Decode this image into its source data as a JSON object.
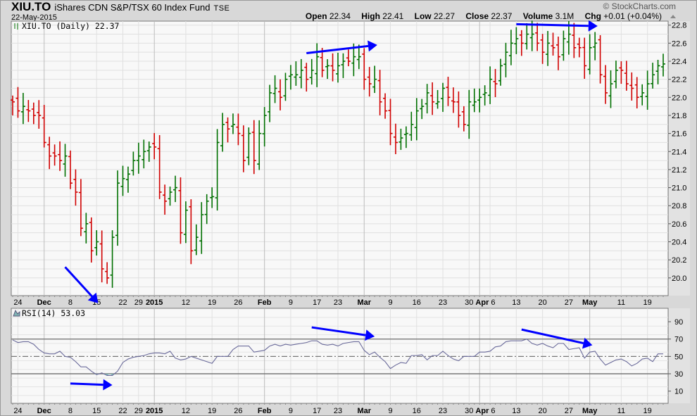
{
  "header": {
    "symbol": "XIU.TO",
    "name": "iShares CDN S&P/TSX 60 Index Fund",
    "exchange": "TSE",
    "date": "22-May-2015",
    "copyright": "© StockCharts.com",
    "open_label": "Open",
    "open": "22.34",
    "high_label": "High",
    "high": "22.41",
    "low_label": "Low",
    "low": "22.27",
    "close_label": "Close",
    "close": "22.37",
    "volume_label": "Volume",
    "volume": "3.1M",
    "chg_label": "Chg",
    "chg": "+0.01 (+0.04%)"
  },
  "colors": {
    "up": "#007000",
    "down": "#d00000",
    "rsi": "#6a6a9a",
    "arrow": "#0000ff",
    "oversold_fill": "#7fb3b3"
  },
  "chart_data": [
    {
      "type": "ohlc",
      "title": "XIU.TO (Daily) 22.37",
      "ylim": [
        19.8,
        22.84
      ],
      "yticks": [
        "20.0",
        "20.2",
        "20.4",
        "20.6",
        "20.8",
        "21.0",
        "21.2",
        "21.4",
        "21.6",
        "21.8",
        "22.0",
        "22.2",
        "22.4",
        "22.6",
        "22.8"
      ],
      "xticks": [
        {
          "i": 1,
          "label": "24",
          "bold": false
        },
        {
          "i": 6,
          "label": "Dec",
          "bold": true
        },
        {
          "i": 11,
          "label": "8",
          "bold": false
        },
        {
          "i": 16,
          "label": "15",
          "bold": false
        },
        {
          "i": 21,
          "label": "22",
          "bold": false
        },
        {
          "i": 24,
          "label": "29",
          "bold": false
        },
        {
          "i": 27,
          "label": "2015",
          "bold": true
        },
        {
          "i": 33,
          "label": "12",
          "bold": false
        },
        {
          "i": 38,
          "label": "19",
          "bold": false
        },
        {
          "i": 43,
          "label": "26",
          "bold": false
        },
        {
          "i": 48,
          "label": "Feb",
          "bold": true
        },
        {
          "i": 53,
          "label": "9",
          "bold": false
        },
        {
          "i": 58,
          "label": "17",
          "bold": false
        },
        {
          "i": 62,
          "label": "23",
          "bold": false
        },
        {
          "i": 67,
          "label": "Mar",
          "bold": true
        },
        {
          "i": 72,
          "label": "9",
          "bold": false
        },
        {
          "i": 77,
          "label": "16",
          "bold": false
        },
        {
          "i": 82,
          "label": "23",
          "bold": false
        },
        {
          "i": 87,
          "label": "30",
          "bold": false
        },
        {
          "i": 89,
          "label": "Apr",
          "bold": true
        },
        {
          "i": 91,
          "label": "6",
          "bold": false
        },
        {
          "i": 96,
          "label": "13",
          "bold": false
        },
        {
          "i": 101,
          "label": "20",
          "bold": false
        },
        {
          "i": 106,
          "label": "27",
          "bold": false
        },
        {
          "i": 110,
          "label": "May",
          "bold": true
        },
        {
          "i": 116,
          "label": "11",
          "bold": false
        },
        {
          "i": 121,
          "label": "19",
          "bold": false
        }
      ],
      "close": [
        21.95,
        21.85,
        21.9,
        21.85,
        21.8,
        21.8,
        21.5,
        21.35,
        21.35,
        21.3,
        21.35,
        21.05,
        20.95,
        20.55,
        20.6,
        20.3,
        20.4,
        20.1,
        20.0,
        20.45,
        21.05,
        21.1,
        21.15,
        21.3,
        21.35,
        21.4,
        21.45,
        21.45,
        20.95,
        20.85,
        20.95,
        21.0,
        20.5,
        20.75,
        20.3,
        20.45,
        20.7,
        20.85,
        20.9,
        21.5,
        21.7,
        21.65,
        21.7,
        21.6,
        21.3,
        21.6,
        21.3,
        21.6,
        21.8,
        22.05,
        22.1,
        22.0,
        22.2,
        22.25,
        22.25,
        22.3,
        22.2,
        22.3,
        22.45,
        22.3,
        22.35,
        22.3,
        22.35,
        22.4,
        22.4,
        22.45,
        22.45,
        22.2,
        22.15,
        22.2,
        21.95,
        21.85,
        21.6,
        21.5,
        21.55,
        21.6,
        21.7,
        21.85,
        21.9,
        22.05,
        21.95,
        21.95,
        22.1,
        22.0,
        21.95,
        21.8,
        21.7,
        21.95,
        21.95,
        22.0,
        22.05,
        22.2,
        22.15,
        22.35,
        22.5,
        22.6,
        22.65,
        22.6,
        22.7,
        22.7,
        22.6,
        22.5,
        22.6,
        22.55,
        22.45,
        22.65,
        22.7,
        22.55,
        22.55,
        22.35,
        22.55,
        22.6,
        22.25,
        22.05,
        22.15,
        22.3,
        22.3,
        22.15,
        22.1,
        22.0,
        22.05,
        22.15,
        22.25,
        22.35,
        22.37
      ],
      "annotations": [
        {
          "from": [
            10,
            20.12
          ],
          "to": [
            16.3,
            19.72
          ]
        },
        {
          "from": [
            56,
            22.49
          ],
          "to": [
            69.5,
            22.58
          ]
        },
        {
          "from": [
            96,
            22.81
          ],
          "to": [
            111.5,
            22.79
          ]
        }
      ]
    },
    {
      "type": "line",
      "title": "RSI(14) 53.03",
      "ylim": [
        0,
        100
      ],
      "yticks": [
        "10",
        "30",
        "50",
        "70",
        "90"
      ],
      "levels": [
        30,
        50,
        70
      ],
      "values": [
        69,
        66,
        67,
        67,
        64,
        58,
        54,
        53,
        53,
        56,
        50,
        49,
        44,
        38,
        38,
        33,
        29,
        31,
        28,
        28,
        33,
        43,
        47,
        49,
        50,
        51,
        53,
        54,
        54,
        53,
        56,
        48,
        46,
        47,
        50,
        48,
        46,
        44,
        42,
        50,
        50,
        50,
        58,
        62,
        62,
        62,
        55,
        56,
        57,
        62,
        64,
        62,
        64,
        63,
        64,
        65,
        66,
        68,
        68,
        64,
        63,
        64,
        62,
        65,
        66,
        67,
        67,
        57,
        52,
        55,
        49,
        44,
        36,
        40,
        43,
        42,
        51,
        51,
        52,
        46,
        51,
        51,
        56,
        51,
        47,
        45,
        50,
        50,
        50,
        55,
        55,
        56,
        61,
        62,
        67,
        68,
        68,
        68,
        70,
        65,
        63,
        65,
        62,
        60,
        65,
        65,
        58,
        59,
        60,
        48,
        55,
        56,
        47,
        40,
        43,
        46,
        47,
        44,
        39,
        42,
        47,
        48,
        44,
        53,
        53
      ],
      "annotations": [
        {
          "from": [
            11,
            18.7
          ],
          "to": [
            19,
            17
          ]
        },
        {
          "from": [
            57,
            83.5
          ],
          "to": [
            69,
            73
          ]
        },
        {
          "from": [
            97,
            81
          ],
          "to": [
            110.5,
            63
          ]
        }
      ]
    }
  ]
}
